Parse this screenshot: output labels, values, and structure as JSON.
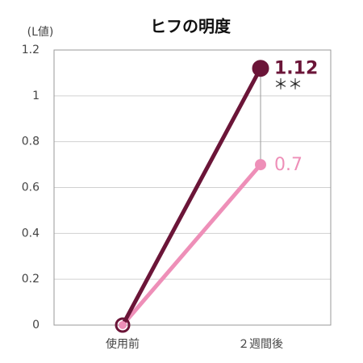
{
  "chart_data": {
    "type": "line",
    "title": "ヒフの明度",
    "ylabel": "(L値)",
    "categories": [
      "使用前",
      "２週間後"
    ],
    "series": [
      {
        "color": "#6b1538",
        "values": [
          0,
          1.12
        ]
      },
      {
        "color": "#ee8fb8",
        "values": [
          0,
          0.7
        ]
      }
    ],
    "annotation": "＊＊",
    "ylim": [
      0,
      1.2
    ],
    "yticks": [
      0,
      0.2,
      0.4,
      0.6,
      0.8,
      1,
      1.2
    ],
    "grid": true
  }
}
